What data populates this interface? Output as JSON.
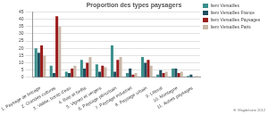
{
  "chart_data": {
    "type": "bar",
    "title": "Proportion des types paysagers",
    "annotation": "E. Magdelaine 2012",
    "categories": [
      "1. Paysage de bocage",
      "2. Grandes cultures",
      "3. Vallée, bords d'eau",
      "4. Bois et forêts",
      "5. Vignes et vergers",
      "6. Paysage périurbain",
      "7. Paysage industriel",
      "8. Paysage urbain",
      "9. Littoral",
      "10. Montagne",
      "11. Autres paysages"
    ],
    "series": [
      {
        "name": "Item Versailles",
        "color": "#3a8f8c",
        "values": [
          20,
          8,
          4,
          12,
          9,
          22,
          3,
          14,
          2,
          6,
          1
        ]
      },
      {
        "name": "Item Versailles France",
        "color": "#1f4e5f",
        "values": [
          17,
          3,
          3,
          6,
          4,
          4,
          6,
          10,
          5,
          6,
          2
        ]
      },
      {
        "name": "Item Versailles Paysages",
        "color": "#9b1c1c",
        "values": [
          22,
          42,
          6,
          10,
          8,
          12,
          2,
          12,
          3,
          3,
          0
        ]
      },
      {
        "name": "Item Versailles Paris",
        "color": "#c9b8a8",
        "values": [
          15,
          35,
          8,
          14,
          7,
          14,
          3,
          8,
          4,
          4,
          1
        ]
      }
    ],
    "ylim": [
      0,
      45
    ],
    "yticks": [
      0,
      5,
      10,
      15,
      20,
      25,
      30,
      35,
      40,
      45
    ],
    "grid": true,
    "legend": "right"
  }
}
